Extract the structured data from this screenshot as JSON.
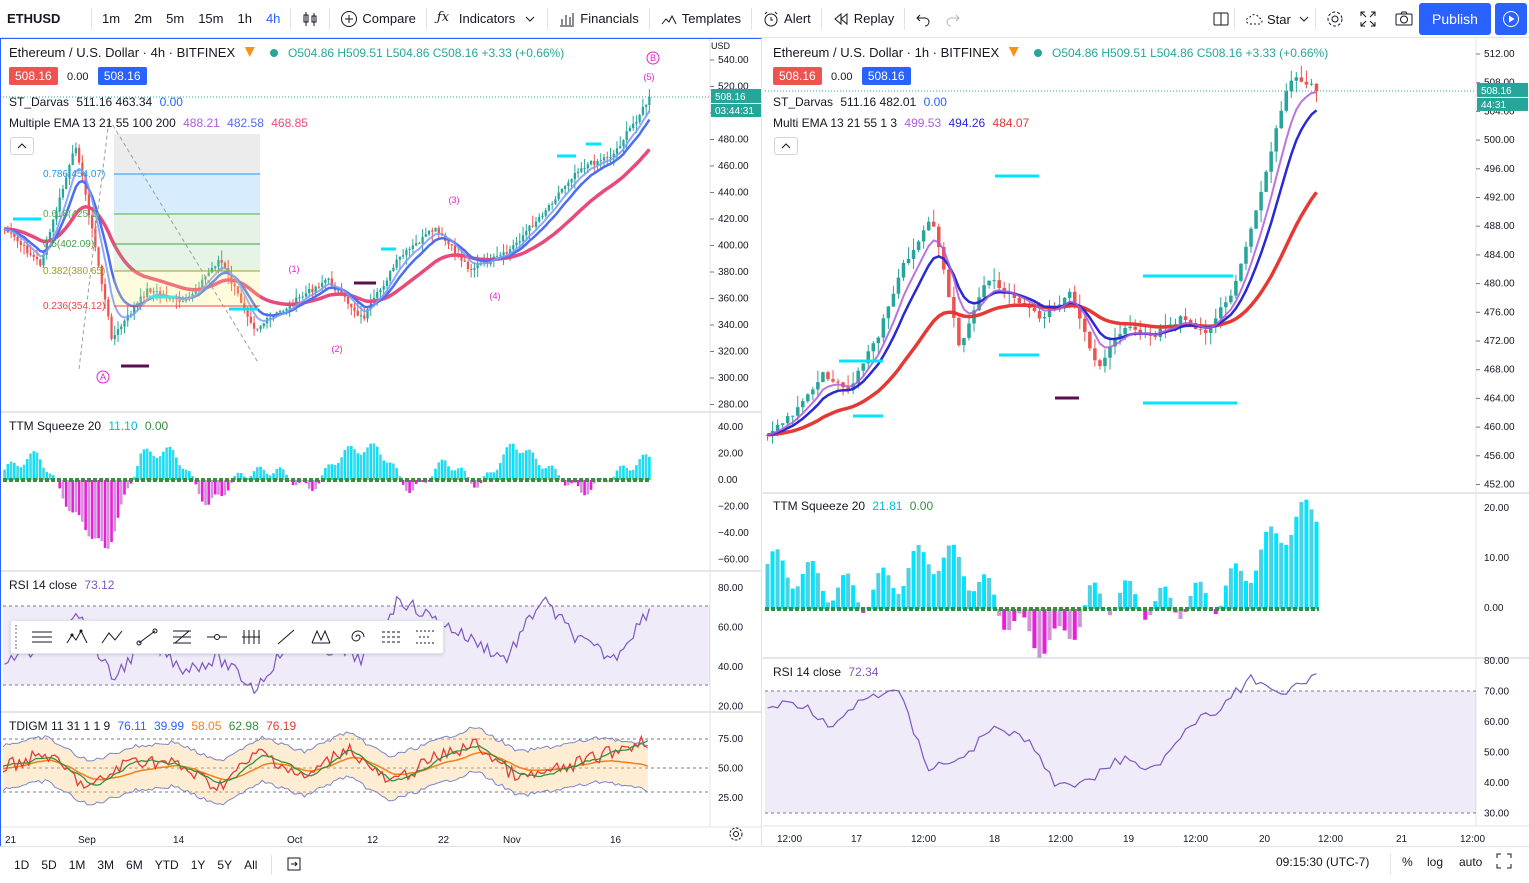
{
  "toolbar": {
    "symbol": "ETHUSD",
    "intervals": [
      "1m",
      "2m",
      "5m",
      "15m",
      "1h",
      "4h"
    ],
    "active_interval": "4h",
    "compare": "Compare",
    "indicators": "Indicators",
    "financials": "Financials",
    "templates": "Templates",
    "alert": "Alert",
    "replay": "Replay",
    "star": "Star",
    "publish": "Publish"
  },
  "left": {
    "title": "Ethereum / U.S. Dollar · 4h · BITFINEX",
    "ohlc": "O504.86 H509.51 L504.86 C508.16 +3.33 (+0.66%)",
    "bid": "508.16",
    "spread": "0.00",
    "ask": "508.16",
    "darvas_name": "ST_Darvas",
    "darvas_vals": "511.16 463.34",
    "darvas_last": "0.00",
    "ema_name": "Multiple EMA 13 21 55 100 200",
    "ema1": "488.21",
    "ema2": "482.58",
    "ema3": "468.85",
    "currency": "USD",
    "price_tag": "508.16",
    "countdown": "03:44:31",
    "price_ticks": [
      "540.00",
      "520.00",
      "500.00",
      "480.00",
      "460.00",
      "440.00",
      "420.00",
      "400.00",
      "380.00",
      "360.00",
      "340.00",
      "320.00",
      "300.00",
      "280.00"
    ],
    "fib": [
      "0.786(454.07)",
      "0.618(425.1)",
      "0.5(402.09)",
      "0.382(380.65)",
      "0.236(354.12)"
    ],
    "waves": {
      "A": "A",
      "B": "B",
      "w1": "(1)",
      "w2": "(2)",
      "w3": "(3)",
      "w4": "(4)",
      "w5": "(5)"
    },
    "ttm_name": "TTM Squeeze 20",
    "ttm_v1": "11.10",
    "ttm_v2": "0.00",
    "ttm_ticks": [
      "40.00",
      "20.00",
      "0.00",
      "−20.00",
      "−40.00",
      "−60.00"
    ],
    "rsi_name": "RSI 14 close",
    "rsi_v": "73.12",
    "rsi_ticks": [
      "80.00",
      "60.00",
      "40.00",
      "20.00"
    ],
    "tdi_name": "TDIGM 11 31 1 1 9",
    "tdi_v1": "76.11",
    "tdi_v2": "39.99",
    "tdi_v3": "58.05",
    "tdi_v4": "62.98",
    "tdi_v5": "76.19",
    "tdi_ticks": [
      "75.00",
      "50.00",
      "25.00"
    ],
    "time_ticks": [
      "21",
      "Sep",
      "14",
      "Oct",
      "12",
      "22",
      "Nov",
      "16"
    ]
  },
  "right": {
    "title": "Ethereum / U.S. Dollar · 1h · BITFINEX",
    "ohlc": "O504.86 H509.51 L504.86 C508.16 +3.33 (+0.66%)",
    "bid": "508.16",
    "spread": "0.00",
    "ask": "508.16",
    "darvas_name": "ST_Darvas",
    "darvas_vals": "511.16 482.01",
    "darvas_last": "0.00",
    "ema_name": "Multi EMA 13 21 55 1 3",
    "ema1": "499.53",
    "ema2": "494.26",
    "ema3": "484.07",
    "price_tag": "508.16",
    "countdown": "44:31",
    "price_ticks": [
      "512.00",
      "508.00",
      "504.00",
      "500.00",
      "496.00",
      "492.00",
      "488.00",
      "484.00",
      "480.00",
      "476.00",
      "472.00",
      "468.00",
      "464.00",
      "460.00",
      "456.00",
      "452.00"
    ],
    "ttm_name": "TTM Squeeze 20",
    "ttm_v1": "21.81",
    "ttm_v2": "0.00",
    "ttm_ticks": [
      "20.00",
      "10.00",
      "0.00"
    ],
    "rsi_name": "RSI 14 close",
    "rsi_v": "72.34",
    "rsi_ticks": [
      "80.00",
      "70.00",
      "60.00",
      "50.00",
      "40.00",
      "30.00"
    ],
    "time_ticks": [
      "12:00",
      "17",
      "12:00",
      "18",
      "12:00",
      "19",
      "12:00",
      "20",
      "12:00",
      "21",
      "12:00"
    ]
  },
  "bottom": {
    "ranges": [
      "1D",
      "5D",
      "1M",
      "3M",
      "6M",
      "YTD",
      "1Y",
      "5Y",
      "All"
    ],
    "clock": "09:15:30 (UTC-7)",
    "pct": "%",
    "log": "log",
    "auto": "auto"
  },
  "colors": {
    "accent": "#2962ff",
    "up": "#26a69a",
    "down": "#ef5350",
    "ema_pink": "#e84a7c",
    "ema_blue": "#4c6ef5",
    "ema_purple": "#b05cd6",
    "cyan": "#00e5ff",
    "magenta": "#e91ed6"
  }
}
